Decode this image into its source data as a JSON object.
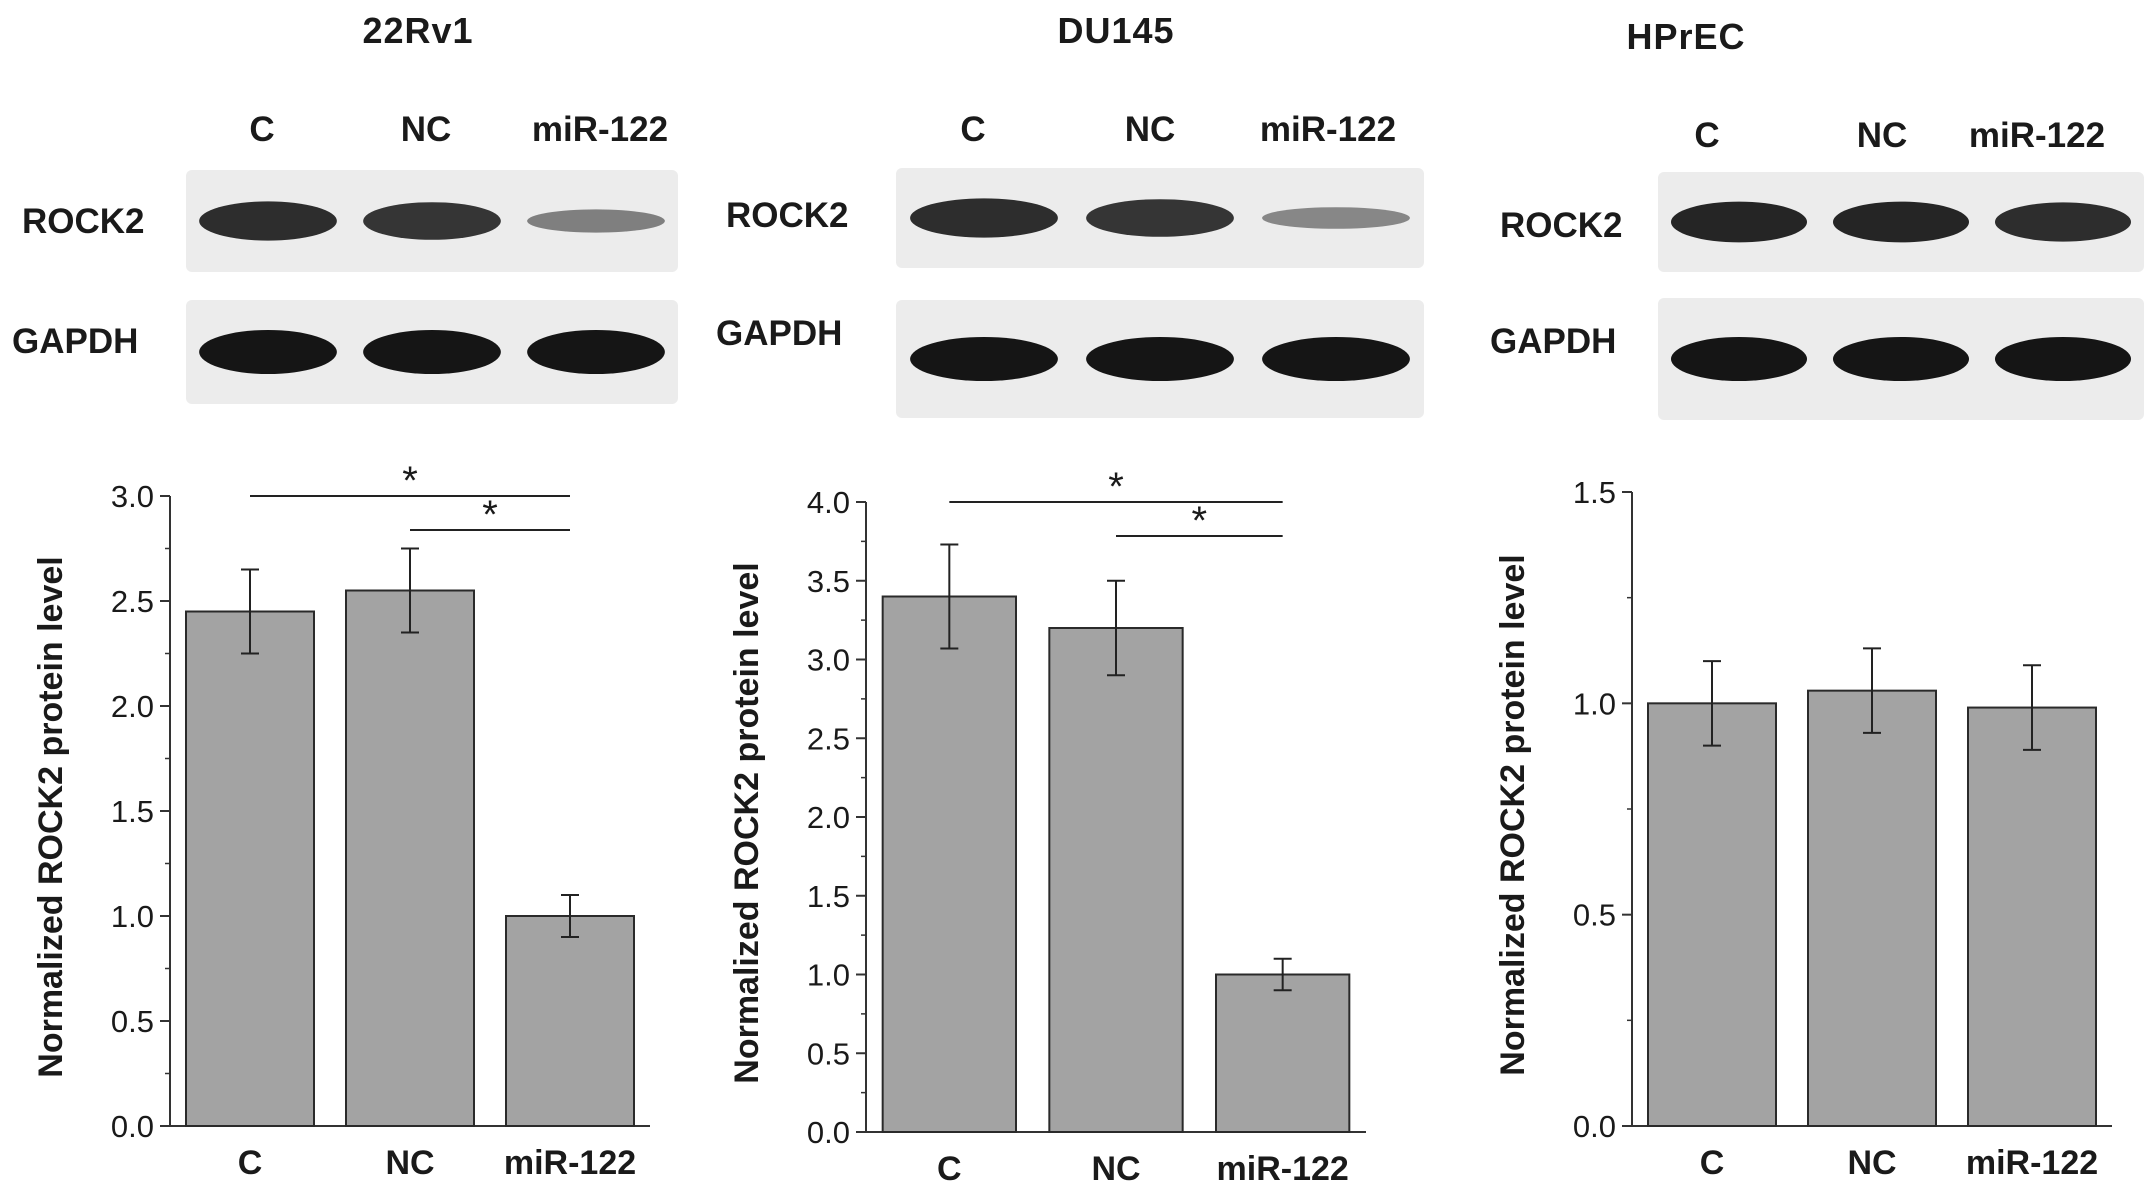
{
  "colors": {
    "bar_fill": "#a3a3a3",
    "bar_stroke": "#2a2a2a",
    "band": "#151515",
    "blot_bg": "#ececec"
  },
  "panels": [
    {
      "title": "22Rv1",
      "lanes": [
        "C",
        "NC",
        "miR-122"
      ],
      "blot_rows": [
        "ROCK2",
        "GAPDH"
      ],
      "band_intensity": {
        "ROCK2": [
          0.85,
          0.8,
          0.35
        ],
        "GAPDH": [
          1.0,
          1.0,
          1.0
        ]
      }
    },
    {
      "title": "DU145",
      "lanes": [
        "C",
        "NC",
        "miR-122"
      ],
      "blot_rows": [
        "ROCK2",
        "GAPDH"
      ],
      "band_intensity": {
        "ROCK2": [
          0.85,
          0.8,
          0.3
        ],
        "GAPDH": [
          1.0,
          1.0,
          1.0
        ]
      }
    },
    {
      "title": "HPrEC",
      "lanes": [
        "C",
        "NC",
        "miR-122"
      ],
      "blot_rows": [
        "ROCK2",
        "GAPDH"
      ],
      "band_intensity": {
        "ROCK2": [
          0.9,
          0.9,
          0.85
        ],
        "GAPDH": [
          1.0,
          1.0,
          1.0
        ]
      }
    }
  ],
  "chart_data": [
    {
      "type": "bar",
      "categories": [
        "C",
        "NC",
        "miR-122"
      ],
      "values": [
        2.45,
        2.55,
        1.0
      ],
      "errors": [
        0.2,
        0.2,
        0.1
      ],
      "ylabel": "Normalized ROCK2 protein level",
      "xlabel": "",
      "ylim": [
        0,
        3.0
      ],
      "yticks": [
        "0.0",
        "0.5",
        "1.0",
        "1.5",
        "2.0",
        "2.5",
        "3.0"
      ],
      "significance": [
        {
          "from": "C",
          "to": "miR-122",
          "label": "*"
        },
        {
          "from": "NC",
          "to": "miR-122",
          "label": "*"
        }
      ]
    },
    {
      "type": "bar",
      "categories": [
        "C",
        "NC",
        "miR-122"
      ],
      "values": [
        3.4,
        3.2,
        1.0
      ],
      "errors": [
        0.33,
        0.3,
        0.1
      ],
      "ylabel": "Normalized ROCK2 protein level",
      "xlabel": "",
      "ylim": [
        0,
        4.0
      ],
      "yticks": [
        "0.0",
        "0.5",
        "1.0",
        "1.5",
        "2.0",
        "2.5",
        "3.0",
        "3.5",
        "4.0"
      ],
      "significance": [
        {
          "from": "C",
          "to": "miR-122",
          "label": "*"
        },
        {
          "from": "NC",
          "to": "miR-122",
          "label": "*"
        }
      ]
    },
    {
      "type": "bar",
      "categories": [
        "C",
        "NC",
        "miR-122"
      ],
      "values": [
        1.0,
        1.03,
        0.99
      ],
      "errors": [
        0.1,
        0.1,
        0.1
      ],
      "ylabel": "Normalized ROCK2 protein level",
      "xlabel": "",
      "ylim": [
        0,
        1.5
      ],
      "yticks": [
        "0.0",
        "0.5",
        "1.0",
        "1.5"
      ],
      "significance": []
    }
  ]
}
